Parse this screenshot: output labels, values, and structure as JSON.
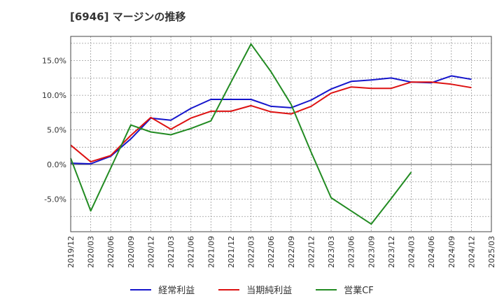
{
  "title": "[6946]  マージンの推移",
  "chart_data": {
    "type": "line",
    "x": [
      "2019/12",
      "2020/03",
      "2020/06",
      "2020/09",
      "2020/12",
      "2021/03",
      "2021/06",
      "2021/09",
      "2021/12",
      "2022/03",
      "2022/06",
      "2022/09",
      "2022/12",
      "2023/03",
      "2023/06",
      "2023/09",
      "2023/12",
      "2024/03",
      "2024/06",
      "2024/09",
      "2024/12",
      "2025/03"
    ],
    "ylim": [
      -9.7,
      18.5
    ],
    "yticks": [
      -5,
      0,
      5,
      10,
      15
    ],
    "ytick_labels": [
      "-5.0%",
      "0.0%",
      "5.0%",
      "10.0%",
      "15.0%"
    ],
    "grid": true,
    "legend_position": "bottom",
    "series": [
      {
        "name": "経常利益",
        "color": "#1515cc",
        "values": [
          0.2,
          0.1,
          1.2,
          3.7,
          6.7,
          6.4,
          8.1,
          9.4,
          9.4,
          9.4,
          8.4,
          8.2,
          9.3,
          10.9,
          12.0,
          12.2,
          12.5,
          11.9,
          11.8,
          12.8,
          12.3,
          null
        ]
      },
      {
        "name": "当期純利益",
        "color": "#dd1111",
        "values": [
          2.8,
          0.4,
          1.3,
          4.2,
          6.8,
          5.1,
          6.7,
          7.7,
          7.7,
          8.5,
          7.6,
          7.3,
          8.4,
          10.3,
          11.2,
          11.0,
          11.0,
          11.9,
          11.9,
          11.6,
          11.1,
          null
        ]
      },
      {
        "name": "営業CF",
        "color": "#228b22",
        "values": [
          0.9,
          -6.7,
          -0.5,
          5.7,
          4.7,
          4.3,
          5.2,
          6.3,
          11.9,
          17.4,
          13.4,
          8.7,
          1.8,
          -4.8,
          -6.7,
          -8.6,
          -4.9,
          -1.1,
          null,
          null,
          null,
          null
        ]
      }
    ]
  }
}
